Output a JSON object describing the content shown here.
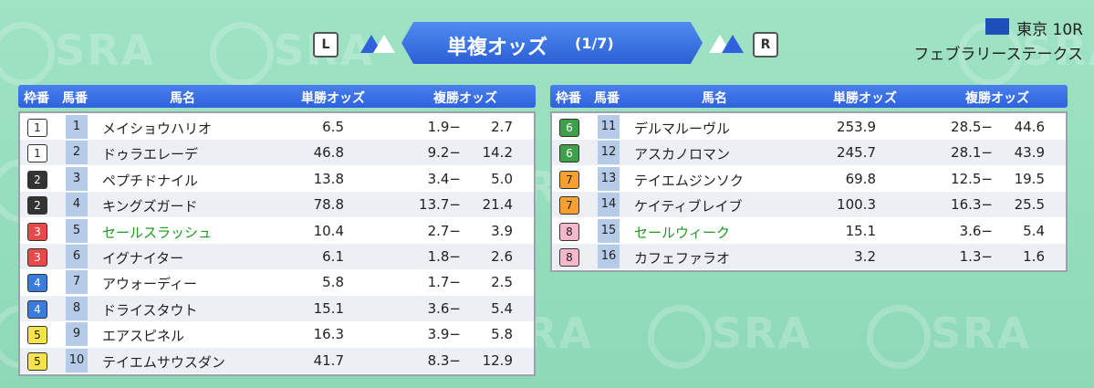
{
  "header": {
    "title": "単複オッズ",
    "page": "(1/7)",
    "left_button": "L",
    "right_button": "R",
    "venue": "東京 10R",
    "race": "フェブラリーステークス"
  },
  "watermark": "SRA",
  "columns": [
    "枠番",
    "馬番",
    "馬名",
    "単勝オッズ",
    "複勝オッズ"
  ],
  "tables": [
    {
      "rows": [
        {
          "frame": "1",
          "number": "1",
          "name": "メイショウハリオ",
          "win": "6.5",
          "place_low": "1.9−",
          "place_high": "2.7"
        },
        {
          "frame": "1",
          "number": "2",
          "name": "ドゥラエレーデ",
          "win": "46.8",
          "place_low": "9.2−",
          "place_high": "14.2"
        },
        {
          "frame": "2",
          "number": "3",
          "name": "ペプチドナイル",
          "win": "13.8",
          "place_low": "3.4−",
          "place_high": "5.0"
        },
        {
          "frame": "2",
          "number": "4",
          "name": "キングズガード",
          "win": "78.8",
          "place_low": "13.7−",
          "place_high": "21.4"
        },
        {
          "frame": "3",
          "number": "5",
          "name": "セールスラッシュ",
          "win": "10.4",
          "place_low": "2.7−",
          "place_high": "3.9",
          "highlight": true
        },
        {
          "frame": "3",
          "number": "6",
          "name": "イグナイター",
          "win": "6.1",
          "place_low": "1.8−",
          "place_high": "2.6"
        },
        {
          "frame": "4",
          "number": "7",
          "name": "アウォーディー",
          "win": "5.8",
          "place_low": "1.7−",
          "place_high": "2.5"
        },
        {
          "frame": "4",
          "number": "8",
          "name": "ドライスタウト",
          "win": "15.1",
          "place_low": "3.6−",
          "place_high": "5.4"
        },
        {
          "frame": "5",
          "number": "9",
          "name": "エアスピネル",
          "win": "16.3",
          "place_low": "3.9−",
          "place_high": "5.8"
        },
        {
          "frame": "5",
          "number": "10",
          "name": "テイエムサウスダン",
          "win": "41.7",
          "place_low": "8.3−",
          "place_high": "12.9"
        }
      ]
    },
    {
      "rows": [
        {
          "frame": "6",
          "number": "11",
          "name": "デルマルーヴル",
          "win": "253.9",
          "place_low": "28.5−",
          "place_high": "44.6"
        },
        {
          "frame": "6",
          "number": "12",
          "name": "アスカノロマン",
          "win": "245.7",
          "place_low": "28.1−",
          "place_high": "43.9"
        },
        {
          "frame": "7",
          "number": "13",
          "name": "テイエムジンソク",
          "win": "69.8",
          "place_low": "12.5−",
          "place_high": "19.5"
        },
        {
          "frame": "7",
          "number": "14",
          "name": "ケイティブレイブ",
          "win": "100.3",
          "place_low": "16.3−",
          "place_high": "25.5"
        },
        {
          "frame": "8",
          "number": "15",
          "name": "セールウィーク",
          "win": "15.1",
          "place_low": "3.6−",
          "place_high": "5.4",
          "highlight": true
        },
        {
          "frame": "8",
          "number": "16",
          "name": "カフェファラオ",
          "win": "3.2",
          "place_low": "1.3−",
          "place_high": "1.6"
        }
      ]
    }
  ]
}
